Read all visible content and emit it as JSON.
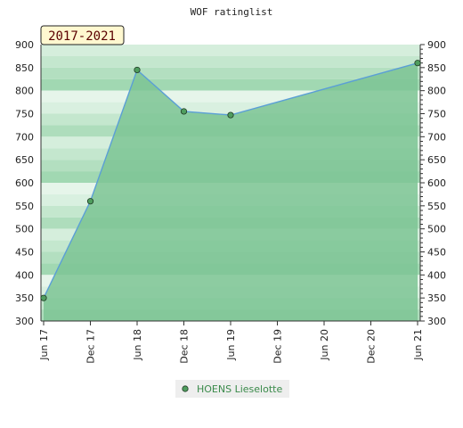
{
  "chart_data": {
    "type": "area",
    "title": "WOF ratinglist",
    "period_label": "2017-2021",
    "xlabel": "",
    "ylabel": "",
    "ylim": [
      300,
      900
    ],
    "y_ticks": [
      300,
      350,
      400,
      450,
      500,
      550,
      600,
      650,
      700,
      750,
      800,
      850,
      900
    ],
    "x_ticks": [
      "Jun 17",
      "Dec 17",
      "Jun 18",
      "Dec 18",
      "Jun 19",
      "Dec 19",
      "Jun 20",
      "Dec 20",
      "Jun 21"
    ],
    "series": [
      {
        "name": "HOENS Lieselotte",
        "x": [
          "Jun 17",
          "Dec 17",
          "Jun 18",
          "Dec 18",
          "Jun 19",
          "Jun 21"
        ],
        "values": [
          350,
          560,
          845,
          755,
          747,
          860
        ]
      }
    ],
    "legend_position": "bottom-center",
    "colors": {
      "area": "#7cc494",
      "line": "#5b9fd6",
      "marker": "#4f9d5e",
      "band_light": "#f3fbf5",
      "band_dark": "#9dd6ae",
      "label_box": "#fff8d0",
      "label_text": "#5a0000"
    }
  }
}
